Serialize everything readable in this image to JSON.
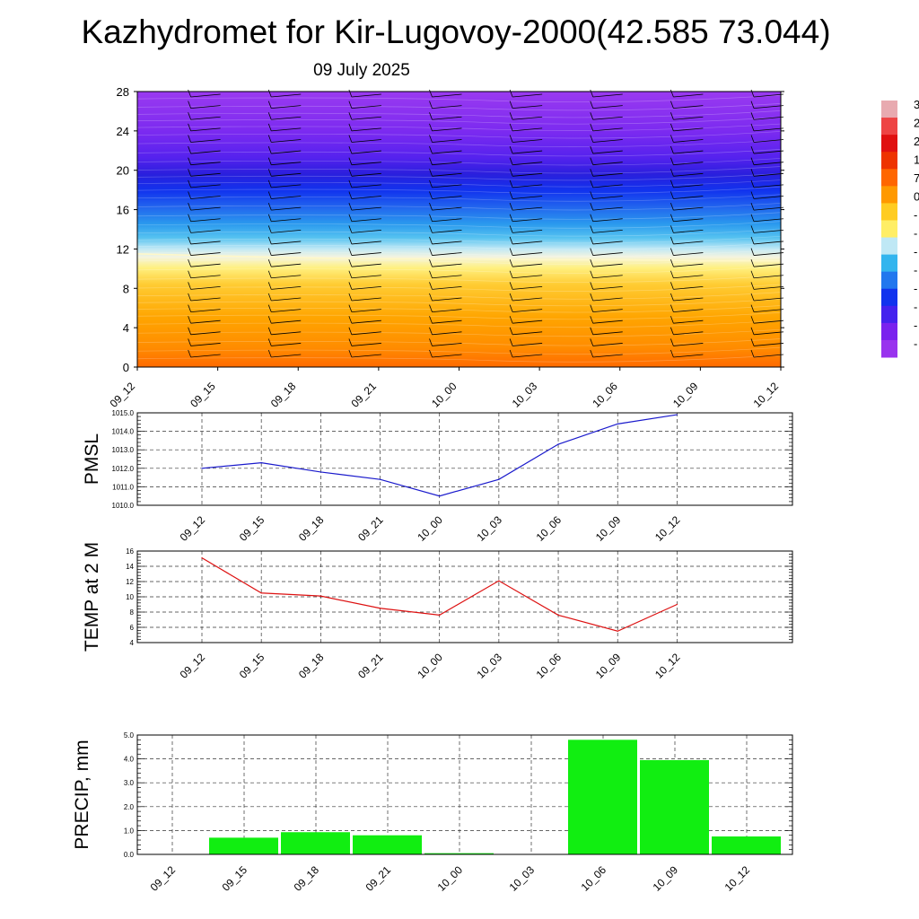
{
  "page": {
    "title": "Kazhydromet for Kir-Lugovoy-2000(42.585 73.044)",
    "subtitle": "09 July 2025"
  },
  "colors": {
    "pmsl_line": "#1a1acc",
    "temp_line": "#dd1111",
    "precip_bar": "#11ee11",
    "grid": "#333333"
  },
  "chart_data": [
    {
      "type": "heatmap",
      "name": "temperature cross-section with wind barbs",
      "xlabel": "",
      "ylabel": "",
      "x_tick_labels": [
        "09_12",
        "09_15",
        "09_18",
        "09_21",
        "10_00",
        "10_03",
        "10_06",
        "10_09",
        "10_12"
      ],
      "y_tick_labels": [
        "0",
        "4",
        "8",
        "12",
        "16",
        "20",
        "24",
        "28"
      ],
      "ylim": [
        0,
        28
      ],
      "freezing_level_y": [
        11.5,
        11.3,
        11.1,
        11.0,
        11.0,
        10.9,
        10.9,
        10.8,
        10.8
      ],
      "colorbar_colors": [
        "#e8aab0",
        "#ee4444",
        "#e01010",
        "#ee3300",
        "#ff6600",
        "#ff9900",
        "#ffcc22",
        "#ffee66",
        "#bfe8f5",
        "#33b5ee",
        "#2277ee",
        "#1133ee",
        "#4422ee",
        "#7a22ee",
        "#9933ee"
      ],
      "colorbar_labels": [
        "3",
        "2",
        "2",
        "1",
        "7",
        "0",
        "-",
        "-",
        "-",
        "-",
        "-",
        "-",
        "-",
        "-"
      ]
    },
    {
      "type": "line",
      "name": "PMSL",
      "ylabel": "PMSL",
      "categories": [
        "09_12",
        "09_15",
        "09_18",
        "09_21",
        "10_00",
        "10_03",
        "10_06",
        "10_09",
        "10_12"
      ],
      "values": [
        1012.0,
        1012.3,
        1011.8,
        1011.4,
        1010.5,
        1011.4,
        1013.3,
        1014.4,
        1014.9
      ],
      "ylim": [
        1010.0,
        1015.0
      ],
      "y_tick_labels": [
        "1010.0",
        "1011.0",
        "1012.0",
        "1013.0",
        "1014.0",
        "1015.0"
      ],
      "grid": true
    },
    {
      "type": "line",
      "name": "TEMP at 2 M",
      "ylabel": "TEMP at 2 M",
      "categories": [
        "09_12",
        "09_15",
        "09_18",
        "09_21",
        "10_00",
        "10_03",
        "10_06",
        "10_09",
        "10_12"
      ],
      "values": [
        15.1,
        10.5,
        10.1,
        8.5,
        7.6,
        12.1,
        7.6,
        5.5,
        9.0
      ],
      "ylim": [
        4,
        16
      ],
      "y_tick_labels": [
        "4",
        "6",
        "8",
        "10",
        "12",
        "14",
        "16"
      ],
      "grid": true
    },
    {
      "type": "bar",
      "name": "PRECIP, mm",
      "ylabel": "PRECIP, mm",
      "categories": [
        "09_12",
        "09_15",
        "09_18",
        "09_21",
        "10_00",
        "10_03",
        "10_06",
        "10_09",
        "10_12"
      ],
      "values": [
        0.0,
        0.7,
        0.93,
        0.8,
        0.05,
        0.0,
        4.8,
        3.95,
        0.75
      ],
      "ylim": [
        0.0,
        5.0
      ],
      "y_tick_labels": [
        "0.0",
        "1.0",
        "2.0",
        "3.0",
        "4.0",
        "5.0"
      ],
      "grid": true
    }
  ]
}
